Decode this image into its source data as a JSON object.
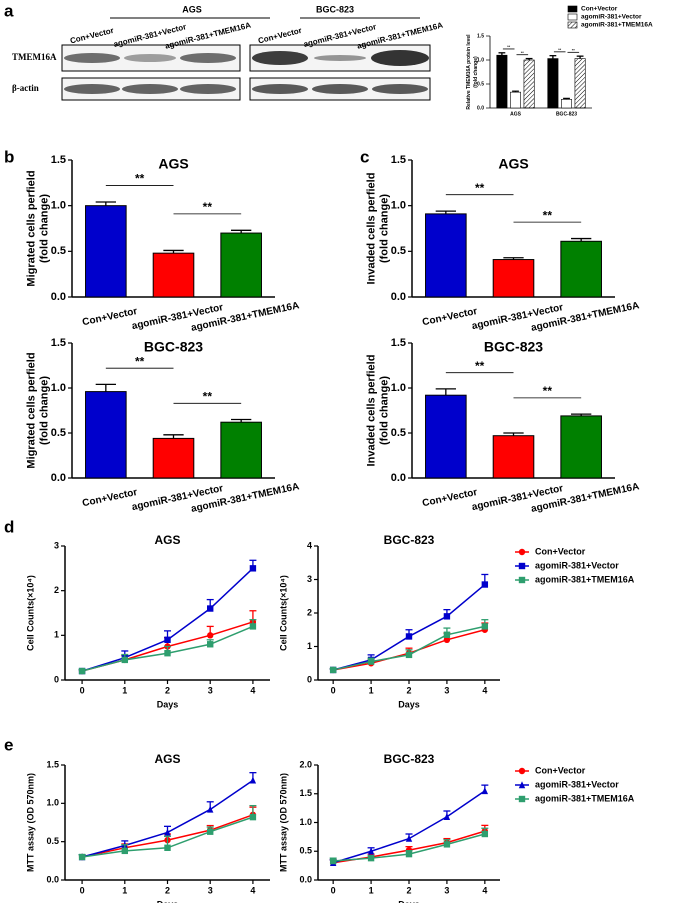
{
  "panels": [
    "a",
    "b",
    "c",
    "d",
    "e"
  ],
  "blot": {
    "groups": [
      {
        "name": "AGS",
        "lanes": [
          "Con+Vector",
          "agomiR-381+Vector",
          "agomiR-381+TMEM16A"
        ]
      },
      {
        "name": "BGC-823",
        "lanes": [
          "Con+Vector",
          "agomiR-381+Vector",
          "agomiR-381+TMEM16A"
        ]
      }
    ],
    "rows": [
      "TMEM16A",
      "β-actin"
    ]
  },
  "chart_data": [
    {
      "type": "grouped_bar",
      "ylabel": [
        "Relative TMEM16A protein level",
        "(fold change)"
      ],
      "categories": [
        "AGS",
        "BGC-823"
      ],
      "series": [
        {
          "name": "Con+Vector",
          "color": "#000000",
          "values": [
            1.1,
            1.03
          ],
          "errors": [
            0.05,
            0.06
          ]
        },
        {
          "name": "agomiR-381+Vector",
          "color": "#ffffff",
          "values": [
            0.33,
            0.18
          ],
          "errors": [
            0.02,
            0.02
          ]
        },
        {
          "name": "agomiR-381+TMEM16A",
          "color": "#ffffff",
          "hatch": true,
          "values": [
            1.0,
            1.03
          ],
          "errors": [
            0.03,
            0.05
          ]
        }
      ],
      "ylim": [
        0,
        1.5
      ],
      "yticks": [
        {
          "value": 0,
          "label": "0.0"
        },
        {
          "value": 0.5,
          "label": "0.5"
        },
        {
          "value": 1,
          "label": "1.0"
        },
        {
          "value": 1.5,
          "label": "1.5"
        }
      ],
      "annotations": [
        "**",
        "**",
        "**",
        "**"
      ],
      "legend": "top-right"
    },
    {
      "type": "bar",
      "title": "AGS",
      "ylabel": [
        "Migrated cells perfield",
        "(fold change)"
      ],
      "categories": [
        "Con+Vector",
        "agomiR-381+Vector",
        "agomiR-381+TMEM16A"
      ],
      "values": [
        1.0,
        0.48,
        0.7
      ],
      "errors": [
        0.04,
        0.03,
        0.03
      ],
      "colors": [
        "#0000cc",
        "#ff0000",
        "#008000"
      ],
      "ylim": [
        0,
        1.5
      ],
      "yticks": [
        {
          "value": 0,
          "label": "0.0"
        },
        {
          "value": 0.5,
          "label": "0.5"
        },
        {
          "value": 1,
          "label": "1.0"
        },
        {
          "value": 1.5,
          "label": "1.5"
        }
      ],
      "annotations": [
        "**",
        "**"
      ]
    },
    {
      "type": "bar",
      "title": "BGC-823",
      "ylabel": [
        "Migrated cells perfield",
        "(fold change)"
      ],
      "categories": [
        "Con+Vector",
        "agomiR-381+Vector",
        "agomiR-381+TMEM16A"
      ],
      "values": [
        0.96,
        0.44,
        0.62
      ],
      "errors": [
        0.08,
        0.04,
        0.03
      ],
      "colors": [
        "#0000cc",
        "#ff0000",
        "#008000"
      ],
      "ylim": [
        0,
        1.5
      ],
      "yticks": [
        {
          "value": 0,
          "label": "0.0"
        },
        {
          "value": 0.5,
          "label": "0.5"
        },
        {
          "value": 1,
          "label": "1.0"
        },
        {
          "value": 1.5,
          "label": "1.5"
        }
      ],
      "annotations": [
        "**",
        "**"
      ]
    },
    {
      "type": "bar",
      "title": "AGS",
      "ylabel": [
        "Invaded cells perfield",
        "(fold change)"
      ],
      "categories": [
        "Con+Vector",
        "agomiR-381+Vector",
        "agomiR-381+TMEM16A"
      ],
      "values": [
        0.91,
        0.41,
        0.61
      ],
      "errors": [
        0.03,
        0.02,
        0.03
      ],
      "colors": [
        "#0000cc",
        "#ff0000",
        "#008000"
      ],
      "ylim": [
        0,
        1.5
      ],
      "yticks": [
        {
          "value": 0,
          "label": "0.0"
        },
        {
          "value": 0.5,
          "label": "0.5"
        },
        {
          "value": 1,
          "label": "1.0"
        },
        {
          "value": 1.5,
          "label": "1.5"
        }
      ],
      "annotations": [
        "**",
        "**"
      ]
    },
    {
      "type": "bar",
      "title": "BGC-823",
      "ylabel": [
        "Invaded cells perfield",
        "(fold change)"
      ],
      "categories": [
        "Con+Vector",
        "agomiR-381+Vector",
        "agomiR-381+TMEM16A"
      ],
      "values": [
        0.92,
        0.47,
        0.69
      ],
      "errors": [
        0.07,
        0.03,
        0.02
      ],
      "colors": [
        "#0000cc",
        "#ff0000",
        "#008000"
      ],
      "ylim": [
        0,
        1.5
      ],
      "yticks": [
        {
          "value": 0,
          "label": "0.0"
        },
        {
          "value": 0.5,
          "label": "0.5"
        },
        {
          "value": 1,
          "label": "1.0"
        },
        {
          "value": 1.5,
          "label": "1.5"
        }
      ],
      "annotations": [
        "**",
        "**"
      ]
    },
    {
      "type": "line",
      "title": "AGS",
      "ylabel": [
        "Cell Counts(×10⁴)"
      ],
      "xlabel": "Days",
      "x": [
        0,
        1,
        2,
        3,
        4
      ],
      "series": [
        {
          "name": "Con+Vector",
          "color": "#ff0000",
          "marker": "circle",
          "values": [
            0.2,
            0.45,
            0.75,
            1.0,
            1.3
          ],
          "errors": [
            0.03,
            0.1,
            0.2,
            0.2,
            0.25
          ]
        },
        {
          "name": "agomiR-381+Vector",
          "color": "#0000cc",
          "marker": "square",
          "values": [
            0.2,
            0.5,
            0.9,
            1.6,
            2.5
          ],
          "errors": [
            0.03,
            0.15,
            0.2,
            0.2,
            0.18
          ]
        },
        {
          "name": "agomiR-381+TMEM16A",
          "color": "#2e9e6e",
          "marker": "square",
          "values": [
            0.2,
            0.45,
            0.6,
            0.8,
            1.2
          ],
          "errors": [
            0.03,
            0.12,
            0.15,
            0.1,
            0.15
          ]
        }
      ],
      "xlim": [
        -0.4,
        4.4
      ],
      "xticks": [
        0,
        1,
        2,
        3,
        4
      ],
      "ylim": [
        0,
        3
      ],
      "yticks": [
        0,
        1,
        2,
        3
      ]
    },
    {
      "type": "line",
      "title": "BGC-823",
      "ylabel": [
        "Cell Counts(×10⁴)"
      ],
      "xlabel": "Days",
      "x": [
        0,
        1,
        2,
        3,
        4
      ],
      "series": [
        {
          "name": "Con+Vector",
          "color": "#ff0000",
          "marker": "circle",
          "values": [
            0.3,
            0.5,
            0.8,
            1.2,
            1.5
          ],
          "errors": [
            0.03,
            0.1,
            0.15,
            0.2,
            0.2
          ]
        },
        {
          "name": "agomiR-381+Vector",
          "color": "#0000cc",
          "marker": "square",
          "values": [
            0.3,
            0.6,
            1.3,
            1.9,
            2.85
          ],
          "errors": [
            0.03,
            0.15,
            0.2,
            0.2,
            0.3
          ]
        },
        {
          "name": "agomiR-381+TMEM16A",
          "color": "#2e9e6e",
          "marker": "square",
          "values": [
            0.3,
            0.55,
            0.75,
            1.35,
            1.6
          ],
          "errors": [
            0.03,
            0.1,
            0.15,
            0.2,
            0.2
          ]
        }
      ],
      "xlim": [
        -0.4,
        4.4
      ],
      "xticks": [
        0,
        1,
        2,
        3,
        4
      ],
      "ylim": [
        0,
        4
      ],
      "yticks": [
        0,
        1,
        2,
        3,
        4
      ],
      "legend": "right"
    },
    {
      "type": "line",
      "title": "AGS",
      "ylabel": [
        "MTT assay (OD 570nm)"
      ],
      "xlabel": "Days",
      "x": [
        0,
        1,
        2,
        3,
        4
      ],
      "series": [
        {
          "name": "Con+Vector",
          "color": "#ff0000",
          "marker": "circle",
          "values": [
            0.3,
            0.42,
            0.52,
            0.65,
            0.85
          ],
          "errors": [
            0.03,
            0.05,
            0.08,
            0.06,
            0.1
          ]
        },
        {
          "name": "agomiR-381+Vector",
          "color": "#0000cc",
          "marker": "triangle",
          "values": [
            0.3,
            0.45,
            0.62,
            0.92,
            1.3
          ],
          "errors": [
            0.03,
            0.06,
            0.08,
            0.1,
            0.1
          ]
        },
        {
          "name": "agomiR-381+TMEM16A",
          "color": "#2e9e6e",
          "marker": "square",
          "values": [
            0.3,
            0.38,
            0.42,
            0.63,
            0.82
          ],
          "errors": [
            0.03,
            0.08,
            0.15,
            0.06,
            0.15
          ]
        }
      ],
      "xlim": [
        -0.4,
        4.4
      ],
      "xticks": [
        0,
        1,
        2,
        3,
        4
      ],
      "ylim": [
        0,
        1.5
      ],
      "yticks": [
        {
          "value": 0,
          "label": "0.0"
        },
        {
          "value": 0.5,
          "label": "0.5"
        },
        {
          "value": 1,
          "label": "1.0"
        },
        {
          "value": 1.5,
          "label": "1.5"
        }
      ]
    },
    {
      "type": "line",
      "title": "BGC-823",
      "ylabel": [
        "MTT assay (OD 570nm)"
      ],
      "xlabel": "Days",
      "x": [
        0,
        1,
        2,
        3,
        4
      ],
      "series": [
        {
          "name": "Con+Vector",
          "color": "#ff0000",
          "marker": "circle",
          "values": [
            0.3,
            0.4,
            0.52,
            0.65,
            0.85
          ],
          "errors": [
            0.05,
            0.05,
            0.06,
            0.07,
            0.1
          ]
        },
        {
          "name": "agomiR-381+Vector",
          "color": "#0000cc",
          "marker": "triangle",
          "values": [
            0.3,
            0.5,
            0.72,
            1.1,
            1.55
          ],
          "errors": [
            0.05,
            0.06,
            0.08,
            0.1,
            0.1
          ]
        },
        {
          "name": "agomiR-381+TMEM16A",
          "color": "#2e9e6e",
          "marker": "square",
          "values": [
            0.33,
            0.38,
            0.45,
            0.62,
            0.8
          ],
          "errors": [
            0.05,
            0.04,
            0.06,
            0.08,
            0.1
          ]
        }
      ],
      "xlim": [
        -0.4,
        4.4
      ],
      "xticks": [
        0,
        1,
        2,
        3,
        4
      ],
      "ylim": [
        0,
        2
      ],
      "yticks": [
        {
          "value": 0,
          "label": "0.0"
        },
        {
          "value": 0.5,
          "label": "0.5"
        },
        {
          "value": 1,
          "label": "1.0"
        },
        {
          "value": 1.5,
          "label": "1.5"
        },
        {
          "value": 2,
          "label": "2.0"
        }
      ],
      "legend": "right"
    }
  ]
}
